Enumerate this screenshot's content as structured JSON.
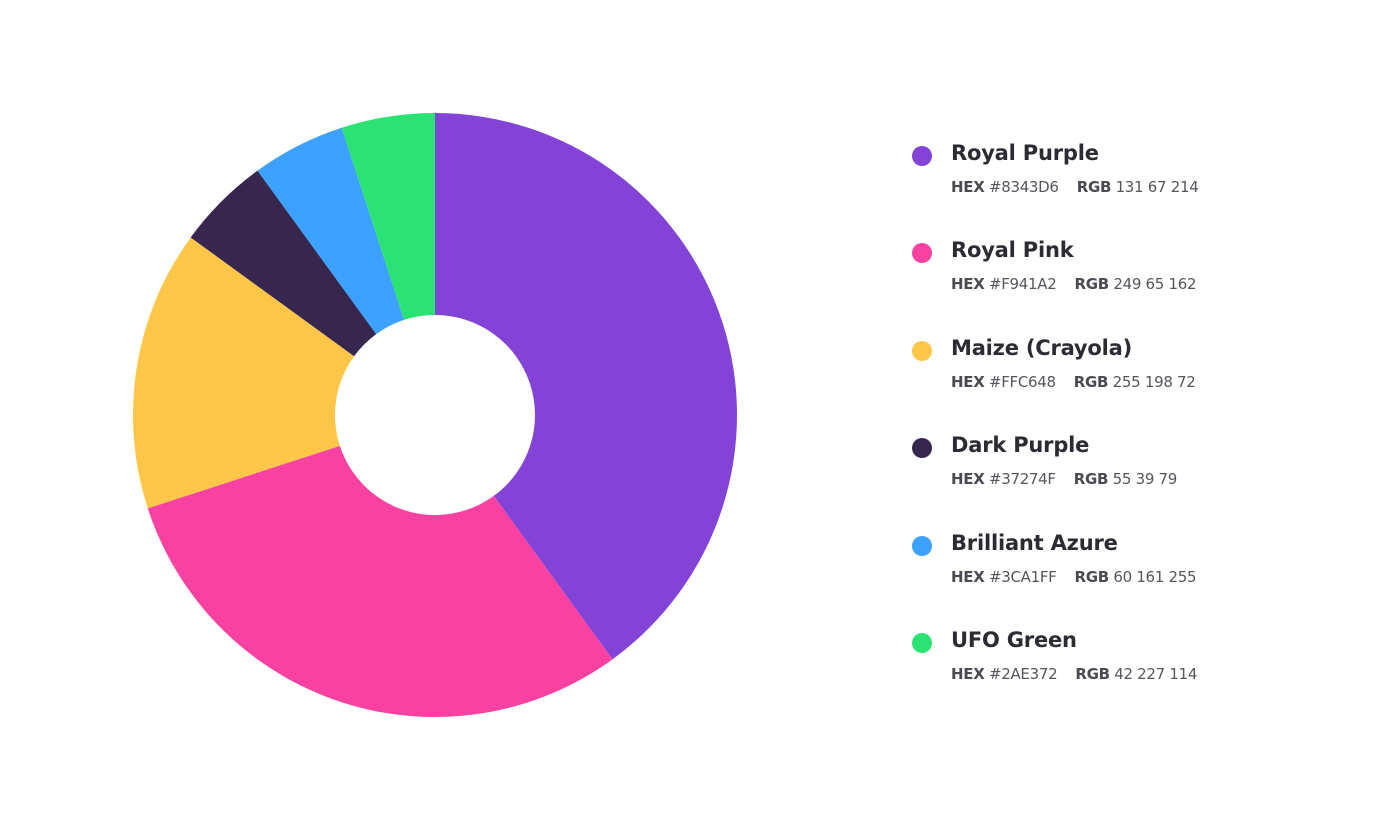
{
  "chart_data": {
    "type": "pie",
    "donut": true,
    "title": "",
    "legend_position": "right",
    "labels": {
      "hex": "HEX",
      "rgb": "RGB"
    },
    "slices": [
      {
        "name": "Royal Purple",
        "value": 40,
        "hex": "#8343D6",
        "rgb": "131 67 214",
        "color": "#8343D6"
      },
      {
        "name": "Royal Pink",
        "value": 30,
        "hex": "#F941A2",
        "rgb": "249 65 162",
        "color": "#F941A2"
      },
      {
        "name": "Maize (Crayola)",
        "value": 15,
        "hex": "#FFC648",
        "rgb": "255 198 72",
        "color": "#FFC648"
      },
      {
        "name": "Dark Purple",
        "value": 5,
        "hex": "#37274F",
        "rgb": "55 39 79",
        "color": "#37274F"
      },
      {
        "name": "Brilliant Azure",
        "value": 5,
        "hex": "#3CA1FF",
        "rgb": "60 161 255",
        "color": "#3CA1FF"
      },
      {
        "name": "UFO Green",
        "value": 5,
        "hex": "#2AE372",
        "rgb": "42 227 114",
        "color": "#2AE372"
      }
    ]
  }
}
